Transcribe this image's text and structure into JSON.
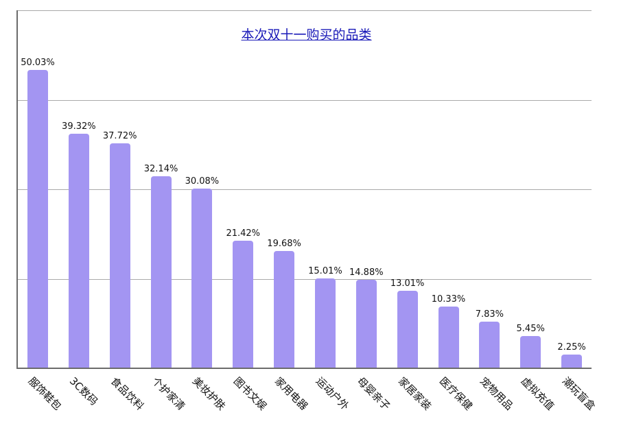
{
  "chart_data": {
    "type": "bar",
    "title": "本次双十一购买的品类",
    "xlabel": "",
    "ylabel": "",
    "ylim": [
      0,
      60
    ],
    "grid": true,
    "gridlines": [
      0,
      15,
      30,
      45,
      60
    ],
    "legend": null,
    "bar_color": "#a395f2",
    "categories": [
      "服饰鞋包",
      "3C数码",
      "食品饮料",
      "个护家清",
      "美妆护肤",
      "图书文娱",
      "家用电器",
      "运动户外",
      "母婴亲子",
      "家居家装",
      "医疗保健",
      "宠物用品",
      "虚拟充值",
      "潮玩盲盒"
    ],
    "values": [
      50.03,
      39.32,
      37.72,
      32.14,
      30.08,
      21.42,
      19.68,
      15.01,
      14.88,
      13.01,
      10.33,
      7.83,
      5.45,
      2.25
    ],
    "value_labels": [
      "50.03%",
      "39.32%",
      "37.72%",
      "32.14%",
      "30.08%",
      "21.42%",
      "19.68%",
      "15.01%",
      "14.88%",
      "13.01%",
      "10.33%",
      "7.83%",
      "5.45%",
      "2.25%"
    ]
  }
}
